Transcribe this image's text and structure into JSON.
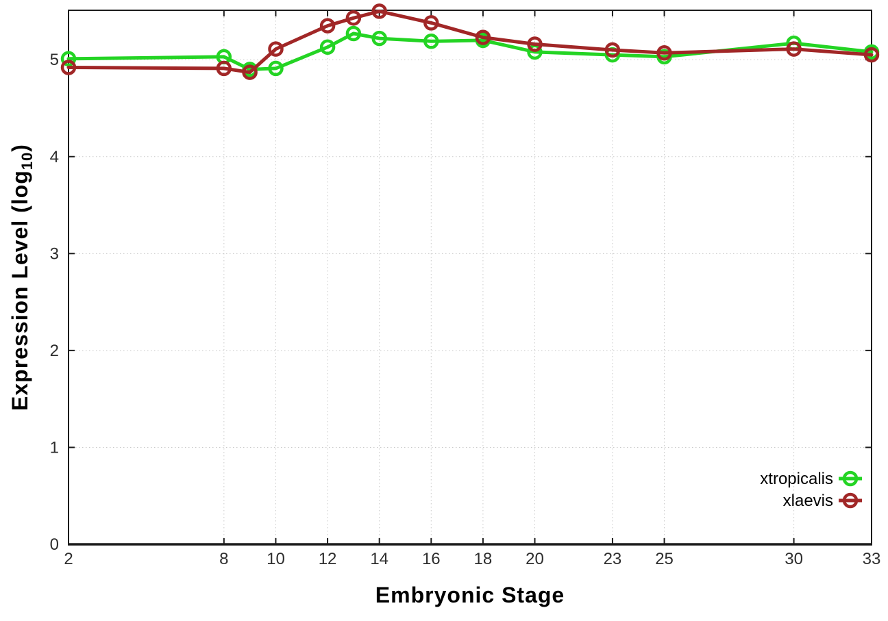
{
  "figure": {
    "xlabel": "Embryonic Stage",
    "ylabel_prefix": "Expression Level (log",
    "ylabel_subscript": "10",
    "ylabel_suffix": ")"
  },
  "chart_data": {
    "type": "line",
    "title": "",
    "xlabel": "Embryonic Stage",
    "ylabel": "Expression Level (log10)",
    "x": [
      2,
      8,
      9,
      10,
      12,
      13,
      14,
      16,
      18,
      20,
      23,
      25,
      30,
      33
    ],
    "x_tick_labels": [
      2,
      8,
      10,
      12,
      14,
      16,
      18,
      20,
      23,
      25,
      30,
      33
    ],
    "y_tick_labels": [
      0,
      1,
      2,
      3,
      4,
      5
    ],
    "xlim": [
      2,
      33
    ],
    "ylim": [
      0,
      5.51
    ],
    "grid": true,
    "grid_color": "#c9c9c9",
    "legend_position": "bottom-right-inside",
    "series": [
      {
        "name": "xtropicalis",
        "color": "#24d424",
        "marker": "open-circle",
        "values": [
          5.01,
          5.03,
          4.9,
          4.91,
          5.13,
          5.27,
          5.22,
          5.19,
          5.2,
          5.08,
          5.05,
          5.03,
          5.17,
          5.08
        ]
      },
      {
        "name": "xlaevis",
        "color": "#a12727",
        "marker": "open-circle",
        "values": [
          4.92,
          4.91,
          4.87,
          5.11,
          5.35,
          5.43,
          5.5,
          5.38,
          5.23,
          5.16,
          5.1,
          5.07,
          5.11,
          5.05
        ]
      }
    ]
  }
}
